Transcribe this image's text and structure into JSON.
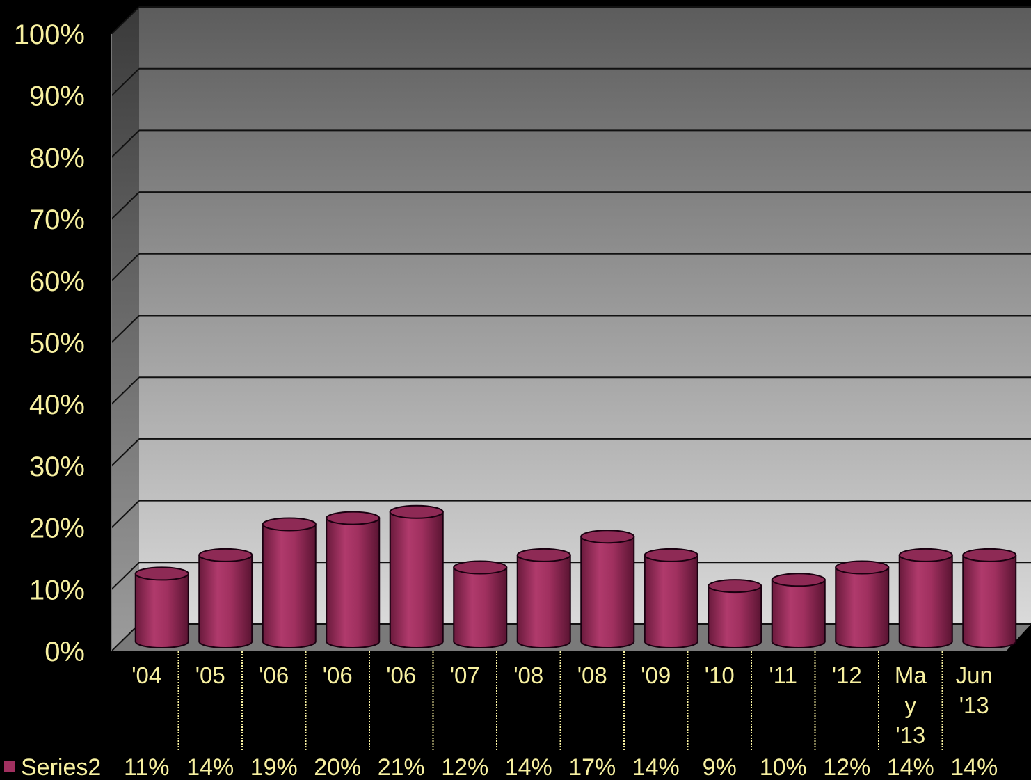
{
  "chart_data": {
    "type": "bar",
    "style": "3d-cylinder",
    "categories": [
      [
        "'04"
      ],
      [
        "'05"
      ],
      [
        "'06"
      ],
      [
        "'06"
      ],
      [
        "'06"
      ],
      [
        "'07"
      ],
      [
        "'08"
      ],
      [
        "'08"
      ],
      [
        "'09"
      ],
      [
        "'10"
      ],
      [
        "'11"
      ],
      [
        "'12"
      ],
      [
        "Ma",
        "y",
        "'13"
      ],
      [
        "Jun",
        "'13"
      ]
    ],
    "series": [
      {
        "name": "Series2",
        "values": [
          11,
          14,
          19,
          20,
          21,
          12,
          14,
          17,
          14,
          9,
          10,
          12,
          14,
          14
        ],
        "labels": [
          "11%",
          "14%",
          "19%",
          "20%",
          "21%",
          "12%",
          "14%",
          "17%",
          "14%",
          "9%",
          "10%",
          "12%",
          "14%",
          "14%"
        ],
        "color": "#a0305f"
      }
    ],
    "yticks": [
      "0%",
      "10%",
      "20%",
      "30%",
      "40%",
      "50%",
      "60%",
      "70%",
      "80%",
      "90%",
      "100%"
    ],
    "ylim": [
      0,
      100
    ],
    "grid": true,
    "data_table": true,
    "colors": {
      "background": "#000000",
      "text": "#f7f0a0",
      "bar": "#a0305f",
      "grid": "#111111"
    }
  }
}
